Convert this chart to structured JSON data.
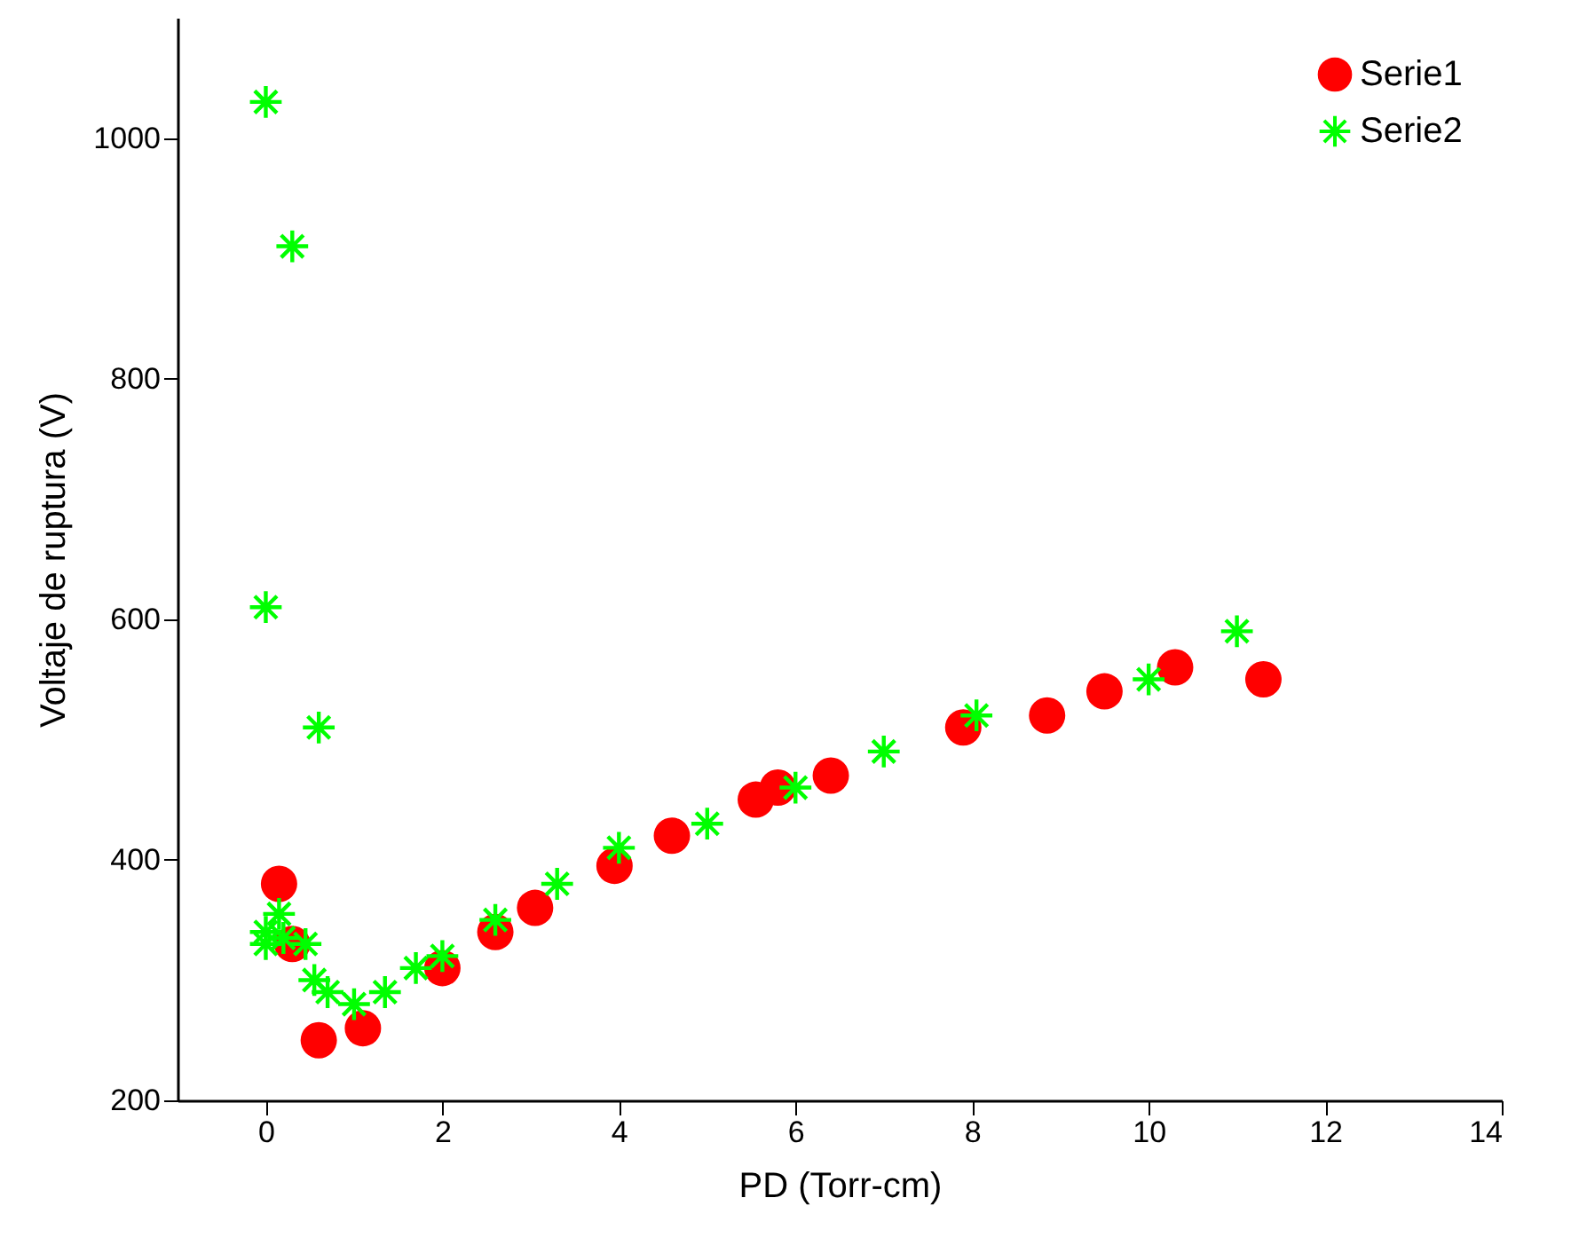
{
  "chart_data": {
    "type": "scatter",
    "xlabel": "PD (Torr-cm)",
    "ylabel": "Voltaje de ruptura (V)",
    "xlim": [
      -1,
      14
    ],
    "xticks": [
      0,
      2,
      4,
      6,
      8,
      10,
      12,
      14
    ],
    "ylim": [
      200,
      1100
    ],
    "yticks": [
      200,
      400,
      600,
      800,
      1000
    ],
    "grid": false,
    "legend": "top right",
    "series": [
      {
        "name": "Serie1",
        "color": "#ff0000",
        "marker": "circle",
        "x": [
          0.15,
          0.3,
          0.6,
          1.1,
          2.0,
          2.6,
          3.05,
          3.95,
          4.6,
          5.55,
          5.8,
          6.4,
          7.9,
          8.85,
          9.5,
          10.3,
          11.3
        ],
        "values": [
          380,
          330,
          250,
          260,
          310,
          340,
          360,
          395,
          420,
          450,
          460,
          470,
          510,
          520,
          540,
          560,
          550
        ]
      },
      {
        "name": "Serie2",
        "color": "#00ff00",
        "marker": "cross",
        "x": [
          0,
          0.3,
          0,
          0.6,
          0,
          0,
          0.15,
          0.2,
          0.45,
          0.55,
          0.7,
          1.0,
          1.35,
          1.7,
          2.0,
          2.6,
          3.3,
          4.0,
          5.0,
          6.0,
          7.0,
          8.05,
          10.0,
          11.0
        ],
        "values": [
          1030,
          910,
          610,
          510,
          340,
          330,
          355,
          335,
          330,
          300,
          290,
          280,
          290,
          310,
          320,
          350,
          380,
          410,
          430,
          460,
          490,
          520,
          550,
          590
        ]
      }
    ]
  }
}
